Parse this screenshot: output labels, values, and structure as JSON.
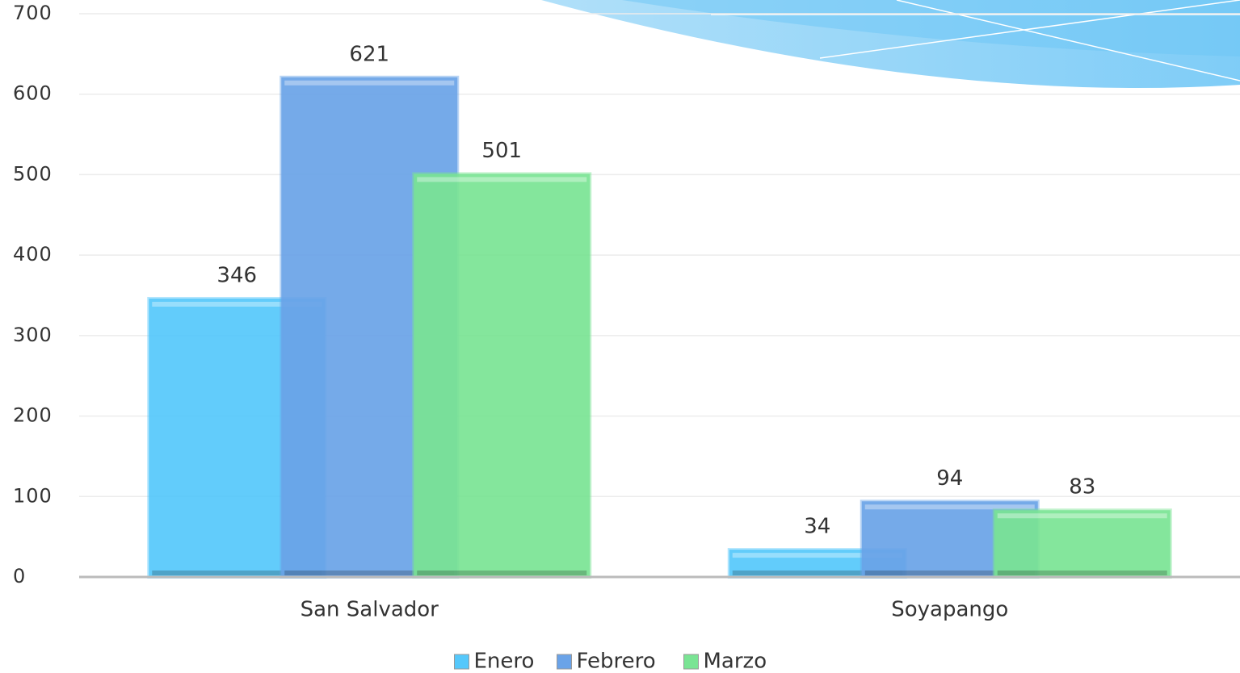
{
  "chart_data": {
    "type": "bar",
    "categories": [
      "San Salvador",
      "Soyapango"
    ],
    "series": [
      {
        "name": "Enero",
        "color": "#55c8fb",
        "values": [
          346,
          34
        ]
      },
      {
        "name": "Febrero",
        "color": "#6aa3e8",
        "values": [
          621,
          94
        ]
      },
      {
        "name": "Marzo",
        "color": "#7ae494",
        "values": [
          501,
          83
        ]
      }
    ],
    "ylim": [
      0,
      700
    ],
    "yticks": [
      0,
      100,
      200,
      300,
      400,
      500,
      600,
      700
    ],
    "grid": true,
    "legend": "bottom"
  }
}
